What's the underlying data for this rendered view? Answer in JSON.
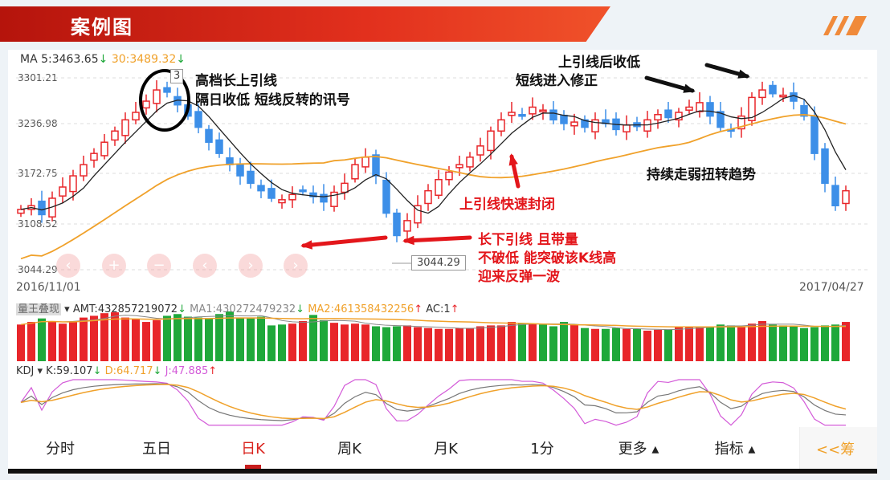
{
  "banner": {
    "title": "案例图"
  },
  "header": {
    "ma5": "MA 5:3463.65",
    "ma5_arrow": "↓",
    "ma30": "30:3489.32",
    "ma30_arrow": "↓"
  },
  "volume_header": {
    "name": "量王叠现",
    "amt": "AMT:432857219072",
    "amt_arrow": "↓",
    "ma1": "MA1:430272479232",
    "ma1_arrow": "↓",
    "ma2": "MA2:461358432256",
    "ma2_arrow": "↑",
    "ac": "AC:1",
    "ac_arrow": "↑"
  },
  "kdj_header": {
    "name": "KDJ",
    "k": "K:59.107",
    "k_arrow": "↓",
    "d": "D:64.717",
    "d_arrow": "↓",
    "j": "J:47.885",
    "j_arrow": "↑"
  },
  "zoom_buttons": [
    "‹",
    "+",
    "−",
    "‹",
    "›",
    "›"
  ],
  "annotations": {
    "circle_note1": "高档长上引线",
    "circle_note2": "隔日收低 短线反转的讯号",
    "low_note1": "长下引线 且带量",
    "low_note2": "不破低 能突破该K线高",
    "low_note3": "迎来反弹一波",
    "close_note": "上引线快速封闭",
    "upper_note1": "上引线后收低",
    "upper_note2": "短线进入修正",
    "trend_note": "持续走弱扭转趋势",
    "low_price_tag": "3044.29",
    "high_price_tag": "3"
  },
  "tabs": [
    {
      "label": "分时"
    },
    {
      "label": "五日"
    },
    {
      "label": "日K",
      "active": true
    },
    {
      "label": "周K"
    },
    {
      "label": "月K"
    },
    {
      "label": "1分"
    },
    {
      "label": "更多 ▴"
    },
    {
      "label": "指标 ▴"
    }
  ],
  "side_tab": "<<筹",
  "colors": {
    "up": "#e8262a",
    "down": "#3d8fe8",
    "vol_down": "#1fa83a",
    "ma5": "#222222",
    "ma30": "#f0a12a",
    "k": "#777777",
    "d": "#f0a12a",
    "j": "#d35ad8",
    "accent": "#d9241e"
  },
  "chart_data": {
    "type": "candlestick",
    "x_start": "2016/11/01",
    "x_end": "2017/04/27",
    "y_ticks": [
      "3301.21",
      "3236.98",
      "3172.75",
      "3108.52",
      "3044.29"
    ],
    "ylim": [
      3044.29,
      3301.21
    ],
    "grid": true,
    "close": [
      3125,
      3130,
      3118,
      3140,
      3155,
      3170,
      3185,
      3200,
      3215,
      3230,
      3245,
      3255,
      3270,
      3285,
      3282,
      3265,
      3250,
      3235,
      3215,
      3200,
      3185,
      3170,
      3160,
      3150,
      3140,
      3138,
      3145,
      3150,
      3142,
      3135,
      3148,
      3160,
      3185,
      3195,
      3170,
      3120,
      3090,
      3110,
      3130,
      3150,
      3165,
      3175,
      3185,
      3195,
      3210,
      3230,
      3245,
      3255,
      3250,
      3262,
      3258,
      3245,
      3240,
      3242,
      3235,
      3245,
      3240,
      3232,
      3238,
      3236,
      3245,
      3252,
      3248,
      3255,
      3262,
      3268,
      3250,
      3235,
      3230,
      3250,
      3275,
      3285,
      3280,
      3278,
      3270,
      3250,
      3200,
      3160,
      3130,
      3150
    ],
    "volume_1e8": [
      4200,
      4500,
      4900,
      4600,
      4300,
      4500,
      5000,
      5200,
      5500,
      5600,
      5000,
      4800,
      4500,
      4700,
      5200,
      5400,
      5100,
      5000,
      4900,
      5400,
      5700,
      5000,
      4900,
      5100,
      4100,
      4200,
      4300,
      4600,
      5300,
      4700,
      4400,
      4200,
      4300,
      4200,
      4000,
      3900,
      4000,
      4100,
      3900,
      3800,
      3700,
      3700,
      3800,
      3800,
      4000,
      4100,
      4100,
      4500,
      4300,
      4300,
      4200,
      4000,
      4500,
      4200,
      3800,
      3700,
      3700,
      3800,
      3700,
      3700,
      3500,
      3600,
      3600,
      3900,
      4000,
      3900,
      4000,
      4200,
      4100,
      4000,
      4300,
      4600,
      4200,
      4100,
      4000,
      3800,
      3900,
      4100,
      4200,
      4500
    ],
    "series": [
      "MA5",
      "MA30",
      "AMT",
      "MA1",
      "MA2",
      "K",
      "D",
      "J"
    ]
  }
}
